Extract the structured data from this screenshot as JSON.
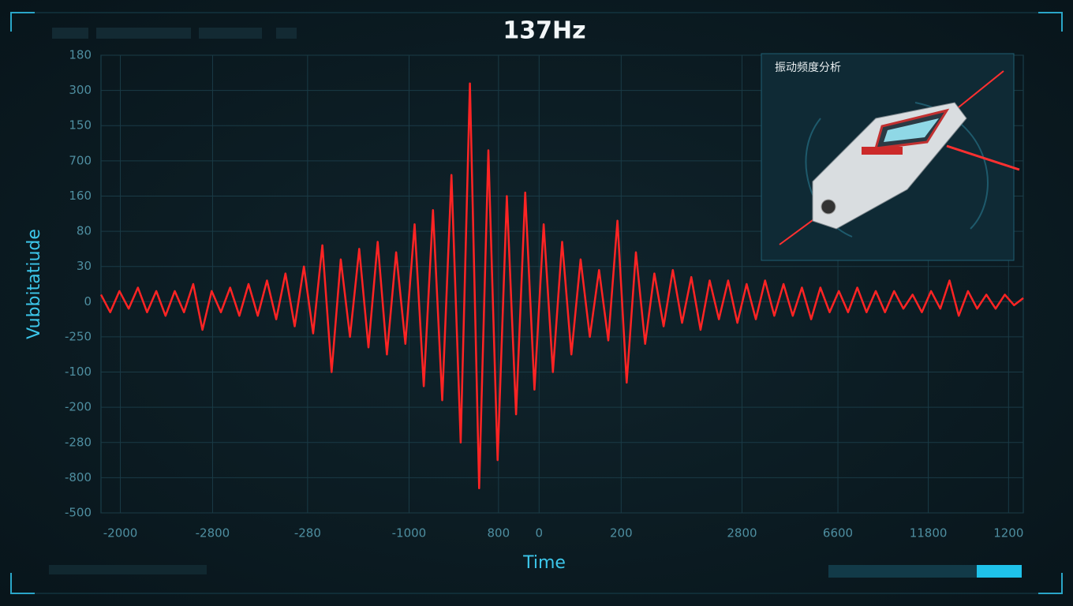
{
  "chart_data": {
    "type": "line",
    "title": "137Hz",
    "x_label": "Time",
    "y_label": "Vubbitatiude",
    "panel_title": "振动频度分析",
    "color": "#ff2424",
    "grid": true,
    "x": [
      0,
      1,
      2,
      3,
      4,
      5,
      6,
      7,
      8,
      9,
      10,
      11,
      12,
      13,
      14,
      15,
      16,
      17,
      18,
      19,
      20,
      21,
      22,
      23,
      24,
      25,
      26,
      27,
      28,
      29,
      30,
      31,
      32,
      33,
      34,
      35,
      36,
      37,
      38,
      39,
      40,
      41,
      42,
      43,
      44,
      45,
      46,
      47,
      48,
      49,
      50,
      51,
      52,
      53,
      54,
      55,
      56,
      57,
      58,
      59,
      60,
      61,
      62,
      63,
      64,
      65,
      66,
      67,
      68,
      69,
      70,
      71,
      72,
      73,
      74,
      75,
      76,
      77,
      78,
      79,
      80,
      81,
      82,
      83,
      84,
      85,
      86,
      87,
      88,
      89,
      90,
      91,
      92,
      93,
      94,
      95,
      96,
      97,
      98,
      99,
      100
    ],
    "values": [
      0.2,
      -0.3,
      0.3,
      -0.2,
      0.4,
      -0.3,
      0.3,
      -0.4,
      0.3,
      -0.3,
      0.5,
      -0.8,
      0.3,
      -0.3,
      0.4,
      -0.4,
      0.5,
      -0.4,
      0.6,
      -0.5,
      0.8,
      -0.7,
      1.0,
      -0.9,
      1.6,
      -2.0,
      1.2,
      -1.0,
      1.5,
      -1.3,
      1.7,
      -1.5,
      1.4,
      -1.2,
      2.2,
      -2.4,
      2.6,
      -2.8,
      3.6,
      -4.0,
      6.2,
      -5.3,
      4.3,
      -4.5,
      3.0,
      -3.2,
      3.1,
      -2.5,
      2.2,
      -2.0,
      1.7,
      -1.5,
      1.2,
      -1.0,
      0.9,
      -1.1,
      2.3,
      -2.3,
      1.4,
      -1.2,
      0.8,
      -0.7,
      0.9,
      -0.6,
      0.7,
      -0.8,
      0.6,
      -0.5,
      0.6,
      -0.6,
      0.5,
      -0.5,
      0.6,
      -0.4,
      0.5,
      -0.4,
      0.4,
      -0.5,
      0.4,
      -0.3,
      0.3,
      -0.3,
      0.4,
      -0.3,
      0.3,
      -0.3,
      0.3,
      -0.2,
      0.2,
      -0.3,
      0.3,
      -0.2,
      0.6,
      -0.4,
      0.3,
      -0.2,
      0.2,
      -0.2,
      0.2,
      -0.1,
      0.1
    ],
    "xlim": [
      0,
      100
    ],
    "ylim": [
      -6,
      7
    ],
    "yticks": [
      {
        "value": 7,
        "label": "180"
      },
      {
        "value": 6,
        "label": "300"
      },
      {
        "value": 5,
        "label": "150"
      },
      {
        "value": 4,
        "label": "700"
      },
      {
        "value": 3,
        "label": "160"
      },
      {
        "value": 2,
        "label": "80"
      },
      {
        "value": 1,
        "label": "30"
      },
      0,
      {
        "value": -1,
        "label": "-250"
      },
      {
        "value": -2,
        "label": "-100"
      },
      {
        "value": -3,
        "label": "-200"
      },
      {
        "value": -4,
        "label": "-280"
      },
      {
        "value": -5,
        "label": "-800"
      },
      {
        "value": -6,
        "label": "-500"
      }
    ],
    "xticks": [
      {
        "value": 2.1,
        "label": "-2000"
      },
      {
        "value": 12.1,
        "label": "-2800"
      },
      {
        "value": 22.4,
        "label": "-280"
      },
      {
        "value": 33.4,
        "label": "-1000"
      },
      {
        "value": 43.1,
        "label": "800"
      },
      {
        "value": 47.5,
        "label": "0"
      },
      {
        "value": 56.4,
        "label": "200"
      },
      {
        "value": 69.5,
        "label": "2800"
      },
      {
        "value": 79.9,
        "label": "6600"
      },
      {
        "value": 89.7,
        "label": "11800"
      },
      {
        "value": 98.4,
        "label": "1200"
      }
    ]
  }
}
